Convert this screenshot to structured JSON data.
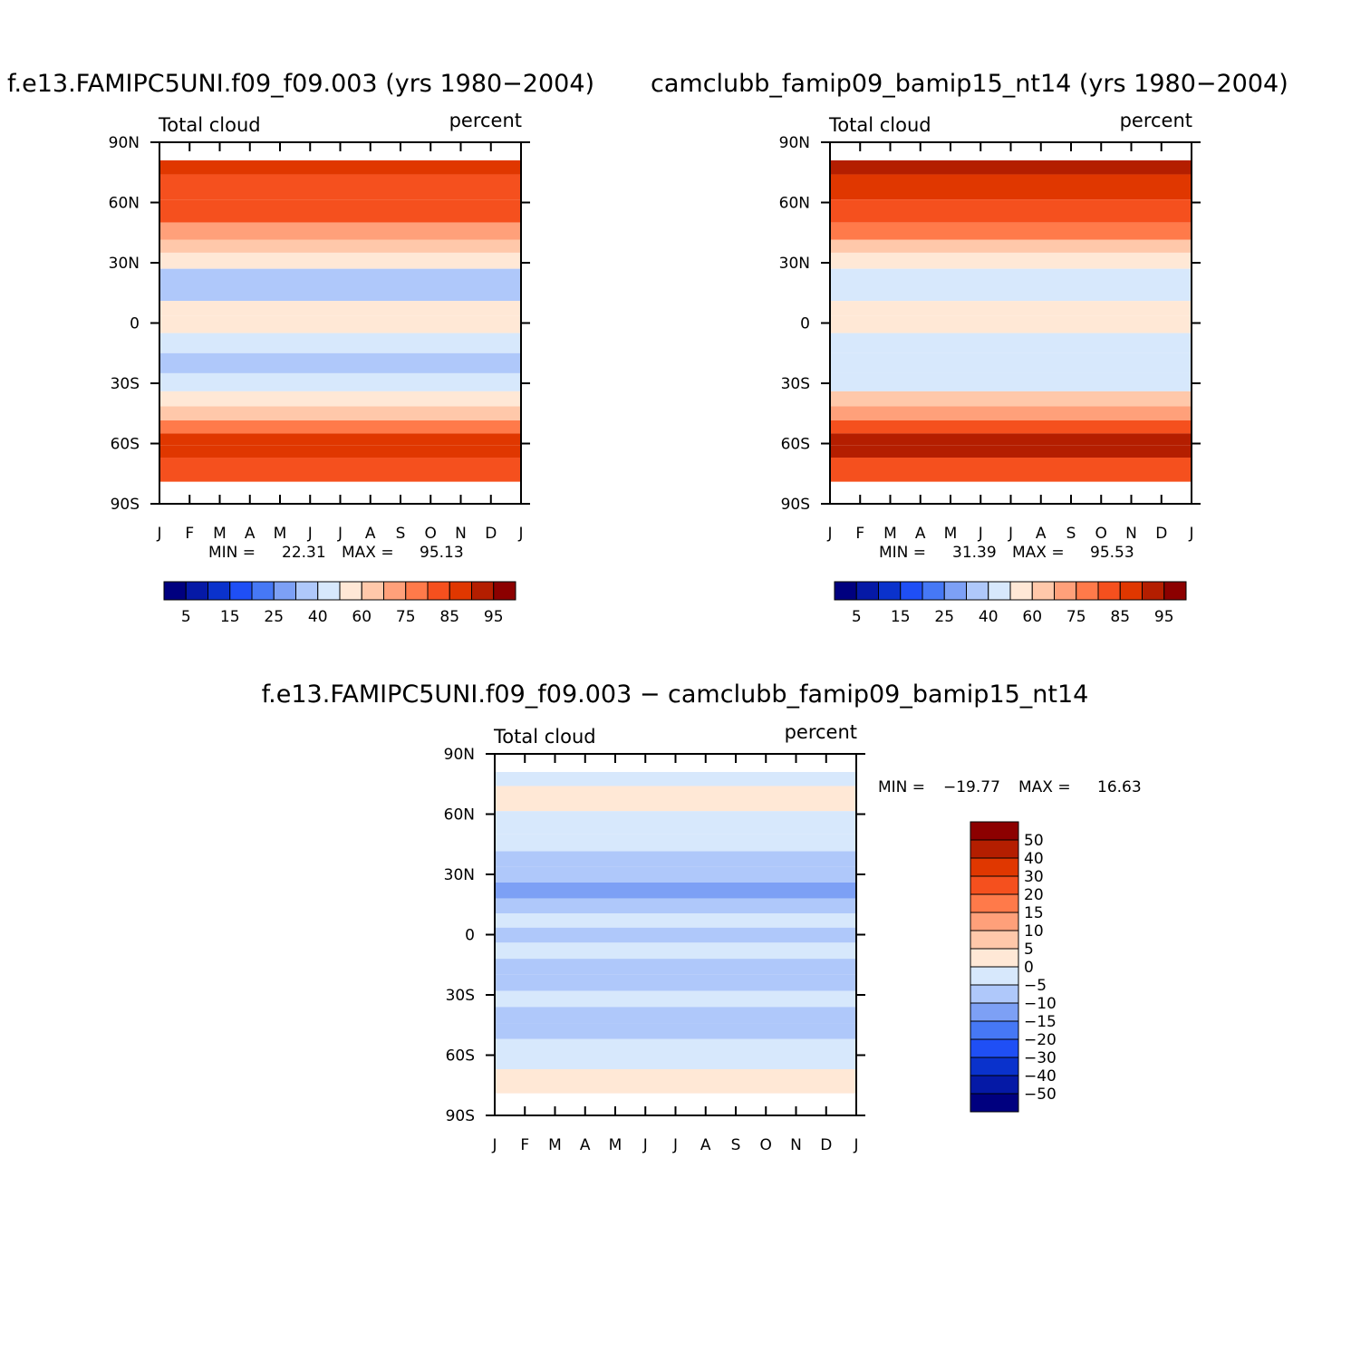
{
  "chart_data": [
    {
      "type": "heatmap",
      "title": "f.e13.FAMIPC5UNI.f09_f09.003 (yrs 1980−2004)",
      "left_label": "Total cloud",
      "right_label": "percent",
      "x_ticks": [
        "J",
        "F",
        "M",
        "A",
        "M",
        "J",
        "J",
        "A",
        "S",
        "O",
        "N",
        "D",
        "J"
      ],
      "y_ticks": [
        "90N",
        "60N",
        "30N",
        "0",
        "30S",
        "60S",
        "90S"
      ],
      "ylim": [
        -90,
        90
      ],
      "min_label": "MIN =",
      "min_value": "22.31",
      "max_label": "MAX =",
      "max_value": "95.13",
      "colorbar_labels": [
        "5",
        "15",
        "25",
        "40",
        "60",
        "75",
        "85",
        "95"
      ],
      "colorbar_colors": [
        "#00007f",
        "#0519a6",
        "#0a32cc",
        "#1f4ff5",
        "#4678f5",
        "#7da0f5",
        "#afc8fa",
        "#d7e8fc",
        "#ffe8d6",
        "#ffc8aa",
        "#ffa07a",
        "#ff7a4a",
        "#f5501e",
        "#e03700",
        "#b41e00",
        "#8c0000"
      ],
      "bands": [
        {
          "lat": 80,
          "value": 88
        },
        {
          "lat": 68,
          "value": 84
        },
        {
          "lat": 55,
          "value": 82
        },
        {
          "lat": 45,
          "value": 74
        },
        {
          "lat": 38,
          "value": 62
        },
        {
          "lat": 32,
          "value": 52
        },
        {
          "lat": 22,
          "value": 38
        },
        {
          "lat": 15,
          "value": 36
        },
        {
          "lat": 7,
          "value": 50
        },
        {
          "lat": 0,
          "value": 50
        },
        {
          "lat": -10,
          "value": 44
        },
        {
          "lat": -20,
          "value": 33
        },
        {
          "lat": -30,
          "value": 44
        },
        {
          "lat": -38,
          "value": 58
        },
        {
          "lat": -45,
          "value": 66
        },
        {
          "lat": -52,
          "value": 78
        },
        {
          "lat": -58,
          "value": 86
        },
        {
          "lat": -64,
          "value": 88
        },
        {
          "lat": -70,
          "value": 80
        }
      ]
    },
    {
      "type": "heatmap",
      "title": "camclubb_famip09_bamip15_nt14 (yrs 1980−2004)",
      "left_label": "Total cloud",
      "right_label": "percent",
      "x_ticks": [
        "J",
        "F",
        "M",
        "A",
        "M",
        "J",
        "J",
        "A",
        "S",
        "O",
        "N",
        "D",
        "J"
      ],
      "y_ticks": [
        "90N",
        "60N",
        "30N",
        "0",
        "30S",
        "60S",
        "90S"
      ],
      "ylim": [
        -90,
        90
      ],
      "min_label": "MIN =",
      "min_value": "31.39",
      "max_label": "MAX =",
      "max_value": "95.53",
      "colorbar_labels": [
        "5",
        "15",
        "25",
        "40",
        "60",
        "75",
        "85",
        "95"
      ],
      "colorbar_colors": [
        "#00007f",
        "#0519a6",
        "#0a32cc",
        "#1f4ff5",
        "#4678f5",
        "#7da0f5",
        "#afc8fa",
        "#d7e8fc",
        "#ffe8d6",
        "#ffc8aa",
        "#ffa07a",
        "#ff7a4a",
        "#f5501e",
        "#e03700",
        "#b41e00",
        "#8c0000"
      ],
      "bands": [
        {
          "lat": 80,
          "value": 90
        },
        {
          "lat": 68,
          "value": 86
        },
        {
          "lat": 55,
          "value": 82
        },
        {
          "lat": 45,
          "value": 76
        },
        {
          "lat": 38,
          "value": 64
        },
        {
          "lat": 32,
          "value": 55
        },
        {
          "lat": 22,
          "value": 42
        },
        {
          "lat": 15,
          "value": 44
        },
        {
          "lat": 7,
          "value": 55
        },
        {
          "lat": 0,
          "value": 52
        },
        {
          "lat": -10,
          "value": 48
        },
        {
          "lat": -20,
          "value": 42
        },
        {
          "lat": -30,
          "value": 48
        },
        {
          "lat": -38,
          "value": 60
        },
        {
          "lat": -45,
          "value": 70
        },
        {
          "lat": -52,
          "value": 82
        },
        {
          "lat": -58,
          "value": 90
        },
        {
          "lat": -64,
          "value": 92
        },
        {
          "lat": -70,
          "value": 82
        }
      ]
    },
    {
      "type": "heatmap",
      "title": "f.e13.FAMIPC5UNI.f09_f09.003 − camclubb_famip09_bamip15_nt14",
      "left_label": "Total cloud",
      "right_label": "percent",
      "x_ticks": [
        "J",
        "F",
        "M",
        "A",
        "M",
        "J",
        "J",
        "A",
        "S",
        "O",
        "N",
        "D",
        "J"
      ],
      "y_ticks": [
        "90N",
        "60N",
        "30N",
        "0",
        "30S",
        "60S",
        "90S"
      ],
      "ylim": [
        -90,
        90
      ],
      "min_label": "MIN =",
      "min_value": "−19.77",
      "max_label": "MAX =",
      "max_value": "16.63",
      "colorbar_labels": [
        "50",
        "40",
        "30",
        "20",
        "15",
        "10",
        "5",
        "0",
        "−5",
        "−10",
        "−15",
        "−20",
        "−30",
        "−40",
        "−50"
      ],
      "colorbar_colors": [
        "#8c0000",
        "#b41e00",
        "#e03700",
        "#f5501e",
        "#ff7a4a",
        "#ffa07a",
        "#ffc8aa",
        "#ffe8d6",
        "#d7e8fc",
        "#afc8fa",
        "#7da0f5",
        "#4678f5",
        "#1f4ff5",
        "#0a32cc",
        "#0519a6",
        "#00007f"
      ],
      "bands": [
        {
          "lat": 80,
          "value": -2
        },
        {
          "lat": 68,
          "value": 2
        },
        {
          "lat": 55,
          "value": -2
        },
        {
          "lat": 45,
          "value": -3
        },
        {
          "lat": 38,
          "value": -6
        },
        {
          "lat": 30,
          "value": -8
        },
        {
          "lat": 22,
          "value": -12
        },
        {
          "lat": 14,
          "value": -7
        },
        {
          "lat": 7,
          "value": -3
        },
        {
          "lat": 0,
          "value": -7
        },
        {
          "lat": -8,
          "value": -3
        },
        {
          "lat": -16,
          "value": -8
        },
        {
          "lat": -24,
          "value": -6
        },
        {
          "lat": -32,
          "value": -3
        },
        {
          "lat": -40,
          "value": -6
        },
        {
          "lat": -48,
          "value": -8
        },
        {
          "lat": -56,
          "value": -3
        },
        {
          "lat": -64,
          "value": -2
        },
        {
          "lat": -70,
          "value": 2
        }
      ]
    }
  ]
}
